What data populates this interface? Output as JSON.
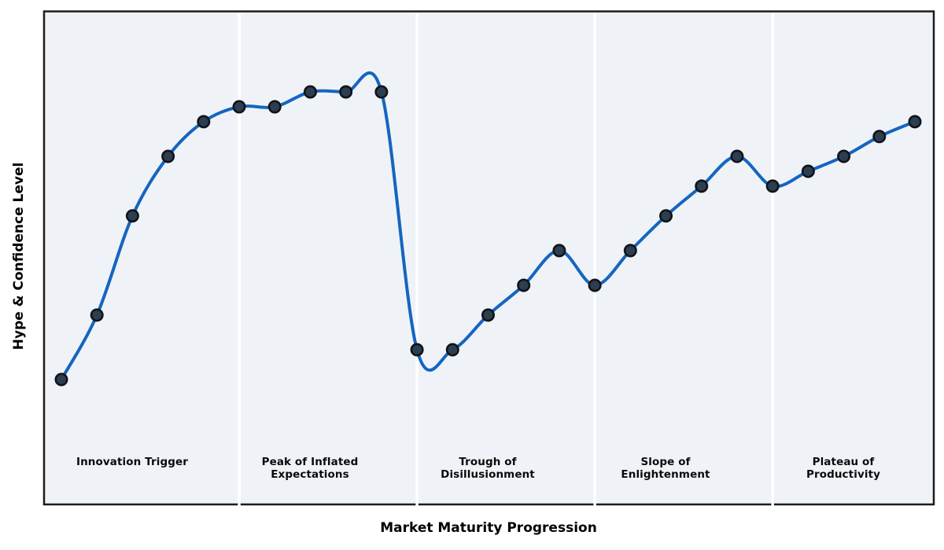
{
  "chart_data": {
    "type": "line",
    "title": "",
    "xlabel": "Market Maturity Progression",
    "ylabel": "Hype & Confidence Level",
    "x": [
      0,
      1,
      2,
      3,
      4,
      5,
      6,
      7,
      8,
      9,
      10,
      11,
      12,
      13,
      14,
      15,
      16,
      17,
      18,
      19,
      20,
      21,
      22,
      23,
      24
    ],
    "series": [
      {
        "name": "Hype & Confidence",
        "values": [
          25,
          38,
          58,
          70,
          77,
          80,
          80,
          83,
          83,
          83,
          31,
          31,
          38,
          44,
          51,
          44,
          51,
          58,
          64,
          70,
          64,
          67,
          70,
          74,
          77
        ]
      }
    ],
    "smoothing": "spline",
    "markers": true,
    "grid": false,
    "legend": false,
    "xticks": [],
    "yticks": [],
    "xlim": [
      -0.5,
      24.5
    ],
    "ylim_estimated": [
      0,
      100
    ],
    "phase_boundaries_x": [
      5,
      10,
      15,
      20
    ],
    "phases": [
      {
        "label": "Innovation Trigger",
        "points": [
          0,
          4
        ]
      },
      {
        "label": "Peak of Inflated\nExpectations",
        "points": [
          5,
          9
        ]
      },
      {
        "label": "Trough of\nDisillusionment",
        "points": [
          10,
          14
        ]
      },
      {
        "label": "Slope of\nEnlightenment",
        "points": [
          15,
          19
        ]
      },
      {
        "label": "Plateau of\nProductivity",
        "points": [
          20,
          24
        ]
      }
    ]
  },
  "colors": {
    "line": "#1565c0",
    "marker_fill": "#2c3e50",
    "marker_edge": "#101418",
    "plot_background": "#eff3f7",
    "phase_separator": "#ffffff",
    "plot_border": "#1c1c1c",
    "figure_background": "#ffffff",
    "label_text": "#000000"
  }
}
